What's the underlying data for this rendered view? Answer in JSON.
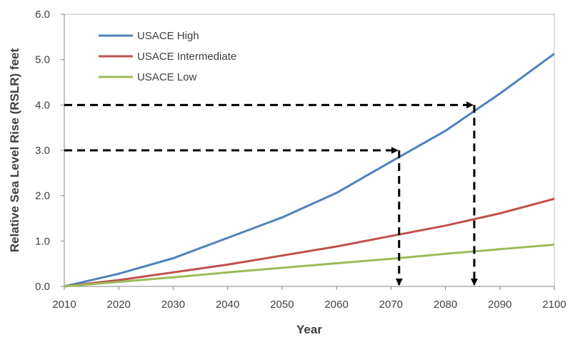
{
  "chart_data": {
    "type": "line",
    "title": "",
    "xlabel": "Year",
    "ylabel": "Relative Sea Level Rise (RSLR) feet",
    "xlim": [
      2010,
      2100
    ],
    "ylim": [
      0.0,
      6.0
    ],
    "xticks": [
      "2010",
      "2020",
      "2030",
      "2040",
      "2050",
      "2060",
      "2070",
      "2080",
      "2090",
      "2100"
    ],
    "yticks": [
      "0.0",
      "1.0",
      "2.0",
      "3.0",
      "4.0",
      "5.0",
      "6.0"
    ],
    "grid": false,
    "legend_position": "top-left",
    "series": [
      {
        "name": "USACE High",
        "color": "#4f81bd",
        "x": [
          2010,
          2020,
          2030,
          2040,
          2050,
          2060,
          2070,
          2080,
          2090,
          2100
        ],
        "y": [
          0.0,
          0.28,
          0.62,
          1.07,
          1.52,
          2.06,
          2.75,
          3.43,
          4.25,
          5.13
        ]
      },
      {
        "name": "USACE Intermediate",
        "color": "#c0504d",
        "x": [
          2010,
          2020,
          2030,
          2040,
          2050,
          2060,
          2070,
          2080,
          2090,
          2100
        ],
        "y": [
          0.0,
          0.14,
          0.31,
          0.48,
          0.68,
          0.88,
          1.11,
          1.34,
          1.61,
          1.93
        ]
      },
      {
        "name": "USACE Low",
        "color": "#9bbb59",
        "x": [
          2010,
          2020,
          2030,
          2040,
          2050,
          2060,
          2070,
          2080,
          2090,
          2100
        ],
        "y": [
          0.0,
          0.1,
          0.2,
          0.31,
          0.41,
          0.51,
          0.61,
          0.72,
          0.82,
          0.92
        ]
      }
    ],
    "annotations": [
      {
        "type": "dashed-arrow",
        "level_ft": 3.0,
        "year": 2071.5
      },
      {
        "type": "dashed-arrow",
        "level_ft": 4.0,
        "year": 2085.3
      }
    ]
  }
}
